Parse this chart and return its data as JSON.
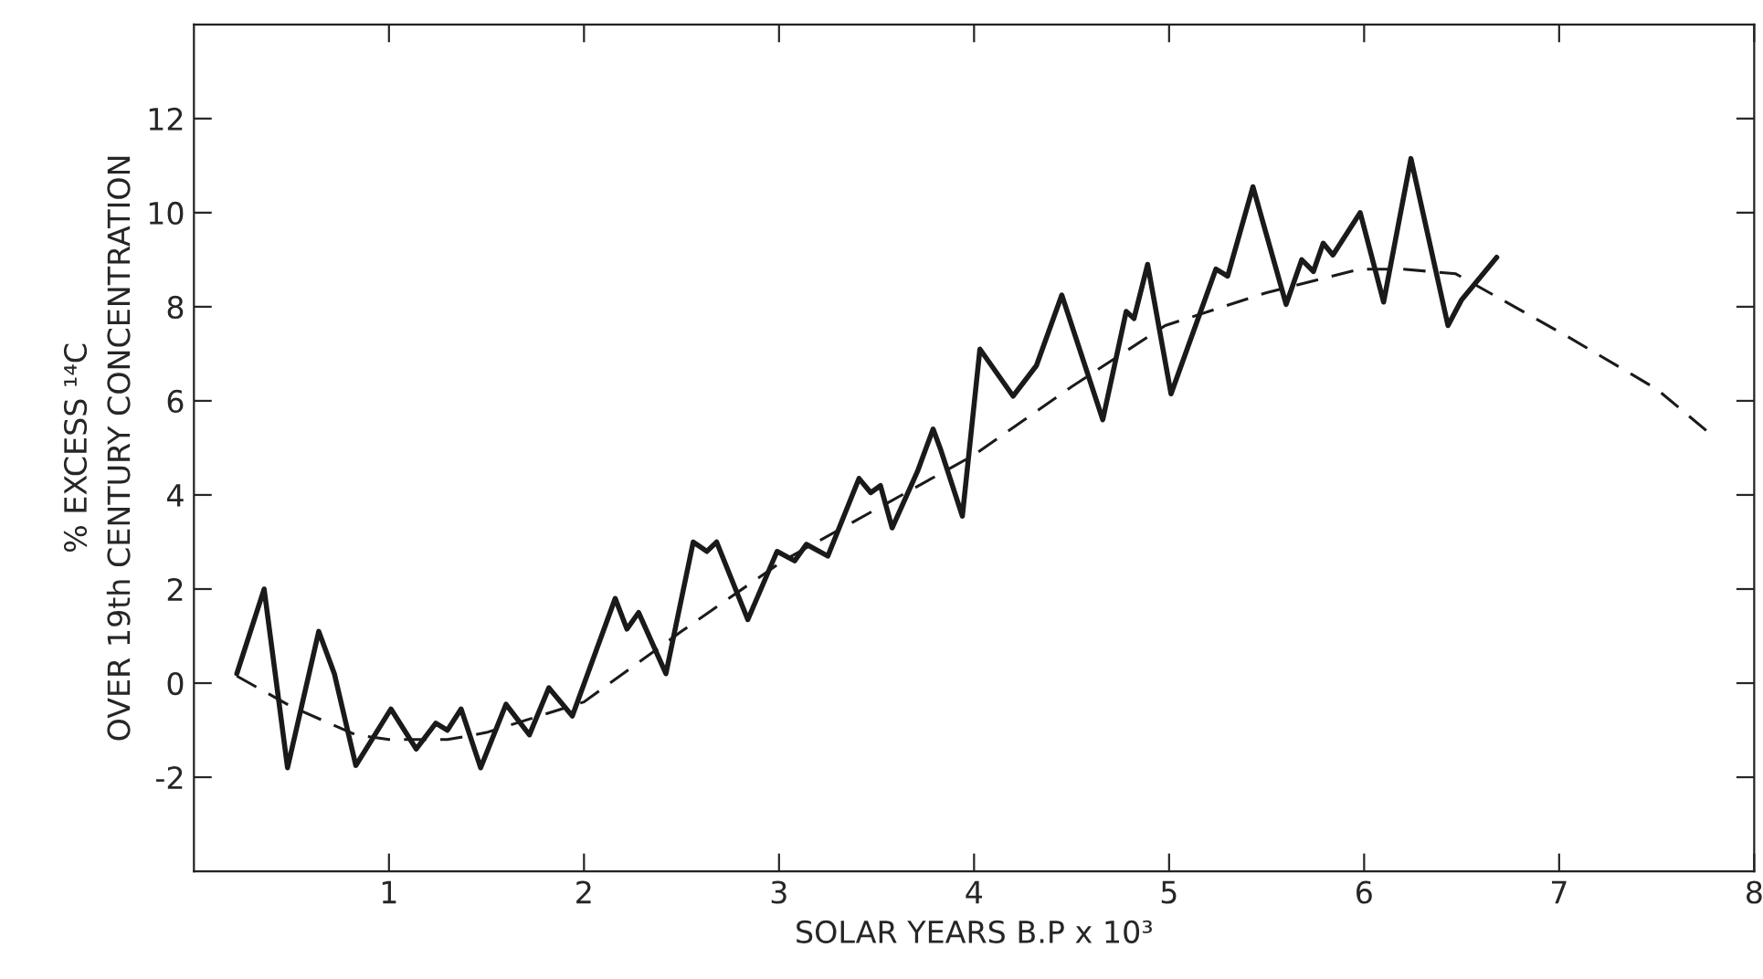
{
  "chart_data": {
    "type": "line",
    "xlabel": "SOLAR YEARS B.P x 10³",
    "ylabel": "% EXCESS ¹⁴C\nOVER 19th CENTURY CONCENTRATION",
    "xlim": [
      0,
      8
    ],
    "ylim": [
      -4,
      14
    ],
    "xticks": [
      1,
      2,
      3,
      4,
      5,
      6,
      7,
      8
    ],
    "yticks": [
      -2,
      0,
      2,
      4,
      6,
      8,
      10,
      12
    ],
    "grid": false,
    "legend": false,
    "marker": "none",
    "series": [
      {
        "color": "#1a1a1a",
        "line_style": "solid",
        "x": [
          0.22,
          0.36,
          0.48,
          0.64,
          0.72,
          0.83,
          1.01,
          1.14,
          1.24,
          1.3,
          1.37,
          1.47,
          1.6,
          1.72,
          1.82,
          1.94,
          2.16,
          2.22,
          2.28,
          2.42,
          2.56,
          2.63,
          2.68,
          2.84,
          2.99,
          3.08,
          3.14,
          3.25,
          3.41,
          3.47,
          3.52,
          3.58,
          3.71,
          3.79,
          3.83,
          3.94,
          4.03,
          4.2,
          4.32,
          4.45,
          4.66,
          4.78,
          4.82,
          4.89,
          5.01,
          5.24,
          5.3,
          5.43,
          5.6,
          5.68,
          5.74,
          5.79,
          5.84,
          5.98,
          6.1,
          6.24,
          6.43,
          6.5,
          6.68
        ],
        "values": [
          0.2,
          2.0,
          -1.8,
          1.1,
          0.2,
          -1.75,
          -0.55,
          -1.4,
          -0.85,
          -1.0,
          -0.55,
          -1.8,
          -0.45,
          -1.1,
          -0.1,
          -0.7,
          1.8,
          1.15,
          1.5,
          0.2,
          3.0,
          2.8,
          3.0,
          1.35,
          2.8,
          2.6,
          2.95,
          2.7,
          4.35,
          4.05,
          4.2,
          3.3,
          4.5,
          5.4,
          4.95,
          3.55,
          7.1,
          6.1,
          6.75,
          8.25,
          5.6,
          7.9,
          7.75,
          8.9,
          6.15,
          8.8,
          8.65,
          10.55,
          8.05,
          9.0,
          8.75,
          9.35,
          9.1,
          10.0,
          8.1,
          11.15,
          7.6,
          8.15,
          9.05
        ]
      },
      {
        "color": "#1a1a1a",
        "line_style": "dashed",
        "x": [
          0.22,
          0.5,
          0.83,
          1.0,
          1.3,
          1.5,
          2.0,
          2.5,
          3.02,
          3.5,
          4.0,
          4.5,
          4.98,
          5.5,
          5.98,
          6.2,
          6.47,
          7.05,
          7.5,
          7.76
        ],
        "values": [
          0.15,
          -0.5,
          -1.1,
          -1.2,
          -1.2,
          -1.05,
          -0.4,
          1.1,
          2.6,
          3.7,
          4.85,
          6.3,
          7.6,
          8.3,
          8.8,
          8.8,
          8.7,
          7.35,
          6.25,
          5.35
        ]
      }
    ]
  }
}
